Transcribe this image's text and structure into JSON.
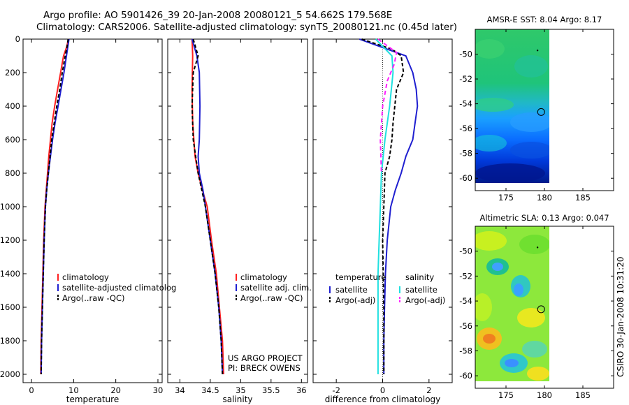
{
  "header": {
    "line1": "Argo profile: AO 5901426_39 20-Jan-2008 20080121_5 54.662S 179.568E",
    "line2": "Climatology: CARS2006. Satellite-adjusted climatology: synTS_20080121.nc (0.45d later)"
  },
  "side_label": "CSIRO 30-Jan-2008 10:31:20",
  "colors": {
    "climatology": "#ff2020",
    "satellite": "#1f1fd0",
    "argo": "#000000",
    "sat_salinity": "#20e0e0",
    "argo_salinity": "#ff20ff"
  },
  "chart_data": [
    {
      "type": "line",
      "id": "temperature",
      "xlabel": "temperature",
      "ylabel": "",
      "xlim": [
        -2,
        31
      ],
      "ylim": [
        0,
        2050
      ],
      "x_ticks": [
        0,
        10,
        20,
        30
      ],
      "y_ticks": [
        0,
        200,
        400,
        600,
        800,
        1000,
        1200,
        1400,
        1600,
        1800,
        2000
      ],
      "y_reversed": true,
      "legend": [
        "climatology",
        "satellite-adjusted climatolog",
        "Argo(..raw -QC)"
      ],
      "series": [
        {
          "name": "climatology",
          "color": "#ff2020",
          "dash": "",
          "points": [
            [
              8.8,
              0
            ],
            [
              8.3,
              50
            ],
            [
              7.6,
              100
            ],
            [
              6.9,
              200
            ],
            [
              6.2,
              300
            ],
            [
              5.5,
              400
            ],
            [
              4.9,
              500
            ],
            [
              4.5,
              600
            ],
            [
              4.1,
              700
            ],
            [
              3.8,
              800
            ],
            [
              3.5,
              900
            ],
            [
              3.2,
              1000
            ],
            [
              2.9,
              1200
            ],
            [
              2.7,
              1400
            ],
            [
              2.5,
              1600
            ],
            [
              2.3,
              1800
            ],
            [
              2.2,
              2000
            ]
          ]
        },
        {
          "name": "satellite-adjusted climatolog",
          "color": "#1f1fd0",
          "dash": "",
          "points": [
            [
              8.9,
              0
            ],
            [
              8.6,
              50
            ],
            [
              8.3,
              100
            ],
            [
              7.7,
              200
            ],
            [
              7.0,
              300
            ],
            [
              6.3,
              400
            ],
            [
              5.6,
              500
            ],
            [
              5.0,
              600
            ],
            [
              4.5,
              700
            ],
            [
              4.0,
              800
            ],
            [
              3.6,
              900
            ],
            [
              3.3,
              1000
            ],
            [
              3.0,
              1200
            ],
            [
              2.8,
              1400
            ],
            [
              2.6,
              1600
            ],
            [
              2.4,
              1800
            ],
            [
              2.3,
              2000
            ]
          ]
        },
        {
          "name": "Argo(..raw -QC)",
          "color": "#000000",
          "dash": "5,3",
          "points": [
            [
              8.7,
              0
            ],
            [
              8.4,
              50
            ],
            [
              8.0,
              100
            ],
            [
              7.3,
              200
            ],
            [
              6.7,
              300
            ],
            [
              6.0,
              400
            ],
            [
              5.4,
              500
            ],
            [
              4.8,
              600
            ],
            [
              4.4,
              700
            ],
            [
              4.0,
              800
            ],
            [
              3.6,
              900
            ],
            [
              3.3,
              1000
            ],
            [
              3.0,
              1200
            ],
            [
              2.8,
              1400
            ],
            [
              2.6,
              1600
            ],
            [
              2.4,
              1800
            ],
            [
              2.3,
              2000
            ]
          ]
        }
      ]
    },
    {
      "type": "line",
      "id": "salinity",
      "xlabel": "salinity",
      "ylabel": "",
      "xlim": [
        33.8,
        36.1
      ],
      "ylim": [
        0,
        2050
      ],
      "x_ticks": [
        34,
        34.5,
        35,
        35.5,
        36
      ],
      "x_tick_labels": [
        "34",
        "34.5",
        "35",
        "35.5",
        "36"
      ],
      "y_reversed": true,
      "legend": [
        "climatology",
        "satellite adj. clim.",
        "Argo(..raw -QC)"
      ],
      "series": [
        {
          "name": "climatology",
          "color": "#ff2020",
          "dash": "",
          "points": [
            [
              34.2,
              0
            ],
            [
              34.21,
              100
            ],
            [
              34.2,
              300
            ],
            [
              34.21,
              500
            ],
            [
              34.25,
              700
            ],
            [
              34.3,
              800
            ],
            [
              34.37,
              900
            ],
            [
              34.45,
              1000
            ],
            [
              34.52,
              1200
            ],
            [
              34.6,
              1400
            ],
            [
              34.65,
              1600
            ],
            [
              34.7,
              1800
            ],
            [
              34.72,
              2000
            ]
          ]
        },
        {
          "name": "satellite adj. clim.",
          "color": "#1f1fd0",
          "dash": "",
          "points": [
            [
              34.2,
              0
            ],
            [
              34.28,
              100
            ],
            [
              34.32,
              200
            ],
            [
              34.33,
              400
            ],
            [
              34.32,
              600
            ],
            [
              34.3,
              700
            ],
            [
              34.32,
              800
            ],
            [
              34.38,
              900
            ],
            [
              34.42,
              1000
            ],
            [
              34.5,
              1200
            ],
            [
              34.58,
              1400
            ],
            [
              34.64,
              1600
            ],
            [
              34.68,
              1800
            ],
            [
              34.7,
              2000
            ]
          ]
        },
        {
          "name": "Argo(..raw -QC)",
          "color": "#000000",
          "dash": "5,3",
          "points": [
            [
              34.22,
              0
            ],
            [
              34.3,
              100
            ],
            [
              34.22,
              200
            ],
            [
              34.2,
              400
            ],
            [
              34.22,
              600
            ],
            [
              34.26,
              700
            ],
            [
              34.3,
              800
            ],
            [
              34.36,
              900
            ],
            [
              34.42,
              1000
            ],
            [
              34.5,
              1200
            ],
            [
              34.58,
              1400
            ],
            [
              34.64,
              1600
            ],
            [
              34.68,
              1800
            ],
            [
              34.7,
              2000
            ]
          ]
        }
      ],
      "annotation": [
        "US ARGO PROJECT",
        "PI: BRECK OWENS"
      ]
    },
    {
      "type": "line",
      "id": "difference",
      "xlabel": "difference from climatology",
      "ylabel": "",
      "xlim": [
        -3,
        3
      ],
      "ylim": [
        0,
        2050
      ],
      "x_ticks": [
        -2,
        0,
        2
      ],
      "y_reversed": true,
      "legend_groups": [
        {
          "title": "temperature",
          "items": [
            "satellite",
            "Argo(-adj)"
          ]
        },
        {
          "title": "salinity",
          "items": [
            "satellite",
            "Argo(-adj)"
          ]
        }
      ],
      "series": [
        {
          "name": "temperature satellite",
          "color": "#1f1fd0",
          "dash": "",
          "points": [
            [
              -1.0,
              0
            ],
            [
              0.2,
              60
            ],
            [
              1.0,
              100
            ],
            [
              1.3,
              200
            ],
            [
              1.45,
              300
            ],
            [
              1.5,
              400
            ],
            [
              1.4,
              500
            ],
            [
              1.3,
              600
            ],
            [
              1.0,
              700
            ],
            [
              0.8,
              800
            ],
            [
              0.55,
              900
            ],
            [
              0.35,
              1000
            ],
            [
              0.2,
              1200
            ],
            [
              0.12,
              1400
            ],
            [
              0.08,
              1600
            ],
            [
              0.05,
              1800
            ],
            [
              0.05,
              2000
            ]
          ]
        },
        {
          "name": "temperature Argo(-adj)",
          "color": "#000000",
          "dash": "5,3",
          "points": [
            [
              -0.9,
              0
            ],
            [
              0.4,
              60
            ],
            [
              0.8,
              100
            ],
            [
              0.9,
              200
            ],
            [
              0.6,
              300
            ],
            [
              0.45,
              500
            ],
            [
              0.4,
              600
            ],
            [
              0.3,
              700
            ],
            [
              0.1,
              800
            ],
            [
              0.05,
              1000
            ],
            [
              0.0,
              1200
            ],
            [
              0.05,
              1600
            ],
            [
              0.05,
              2000
            ]
          ]
        },
        {
          "name": "salinity satellite",
          "color": "#20e0e0",
          "dash": "",
          "points": [
            [
              -0.3,
              0
            ],
            [
              0.4,
              100
            ],
            [
              0.45,
              200
            ],
            [
              0.3,
              400
            ],
            [
              0.1,
              600
            ],
            [
              -0.05,
              800
            ],
            [
              -0.1,
              1000
            ],
            [
              -0.15,
              1200
            ],
            [
              -0.2,
              1400
            ],
            [
              -0.2,
              1600
            ],
            [
              -0.2,
              1800
            ],
            [
              -0.2,
              2000
            ]
          ]
        },
        {
          "name": "salinity Argo(-adj)",
          "color": "#ff20ff",
          "dash": "6,4",
          "points": [
            [
              -0.2,
              0
            ],
            [
              0.6,
              80
            ],
            [
              0.5,
              150
            ],
            [
              0.2,
              250
            ],
            [
              0.0,
              400
            ],
            [
              -0.1,
              600
            ],
            [
              -0.05,
              800
            ]
          ]
        }
      ]
    },
    {
      "type": "heatmap",
      "id": "sst",
      "title": "AMSR-E SST: 8.04 Argo: 8.17",
      "xlim": [
        171,
        189
      ],
      "ylim": [
        -61,
        -48
      ],
      "x_ticks": [
        175,
        180,
        185
      ],
      "y_ticks": [
        -50,
        -52,
        -54,
        -56,
        -58,
        -60
      ],
      "data_extent": {
        "x": [
          171,
          180
        ],
        "y": [
          -60,
          -48.5
        ]
      },
      "marker": [
        179.568,
        -54.662
      ]
    },
    {
      "type": "heatmap",
      "id": "sla",
      "title": "Altimetric SLA: 0.13 Argo: 0.047",
      "xlim": [
        171,
        189
      ],
      "ylim": [
        -61,
        -48
      ],
      "x_ticks": [
        175,
        180,
        185
      ],
      "y_ticks": [
        -50,
        -52,
        -54,
        -56,
        -58,
        -60
      ],
      "data_extent": {
        "x": [
          171,
          180
        ],
        "y": [
          -60,
          -48.5
        ]
      },
      "marker": [
        179.568,
        -54.662
      ]
    }
  ]
}
